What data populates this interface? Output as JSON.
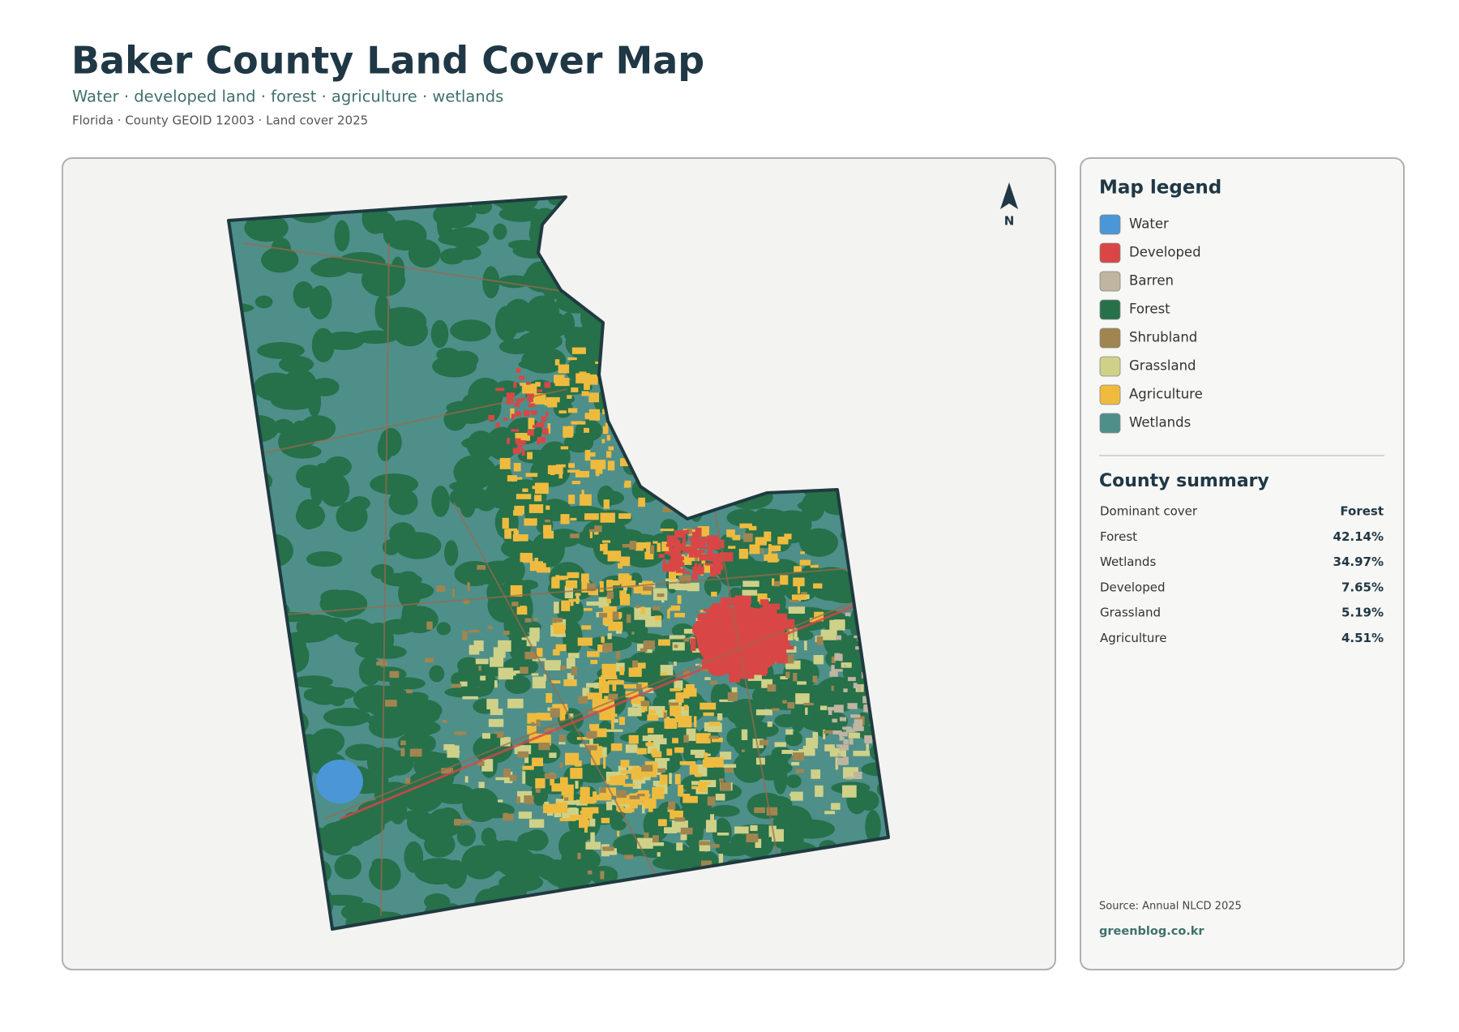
{
  "header": {
    "title": "Baker County Land Cover Map",
    "subtitle": "Water · developed land · forest · agriculture · wetlands",
    "meta": "Florida · County GEOID 12003 · Land cover 2025"
  },
  "north": "N",
  "legend": {
    "title": "Map legend",
    "items": [
      {
        "label": "Water",
        "color": "#4a96d6"
      },
      {
        "label": "Developed",
        "color": "#d94646"
      },
      {
        "label": "Barren",
        "color": "#bfb5a0"
      },
      {
        "label": "Forest",
        "color": "#26704a"
      },
      {
        "label": "Shrubland",
        "color": "#a08550"
      },
      {
        "label": "Grassland",
        "color": "#cfd188"
      },
      {
        "label": "Agriculture",
        "color": "#efbb3f"
      },
      {
        "label": "Wetlands",
        "color": "#4e8f8a"
      }
    ]
  },
  "summary": {
    "title": "County summary",
    "rows": [
      [
        "Dominant cover",
        "Forest"
      ],
      [
        "Forest",
        "42.14%"
      ],
      [
        "Wetlands",
        "34.97%"
      ],
      [
        "Developed",
        "7.65%"
      ],
      [
        "Grassland",
        "5.19%"
      ],
      [
        "Agriculture",
        "4.51%"
      ]
    ]
  },
  "source": "Source: Annual NLCD 2025",
  "site": "greenblog.co.kr"
}
